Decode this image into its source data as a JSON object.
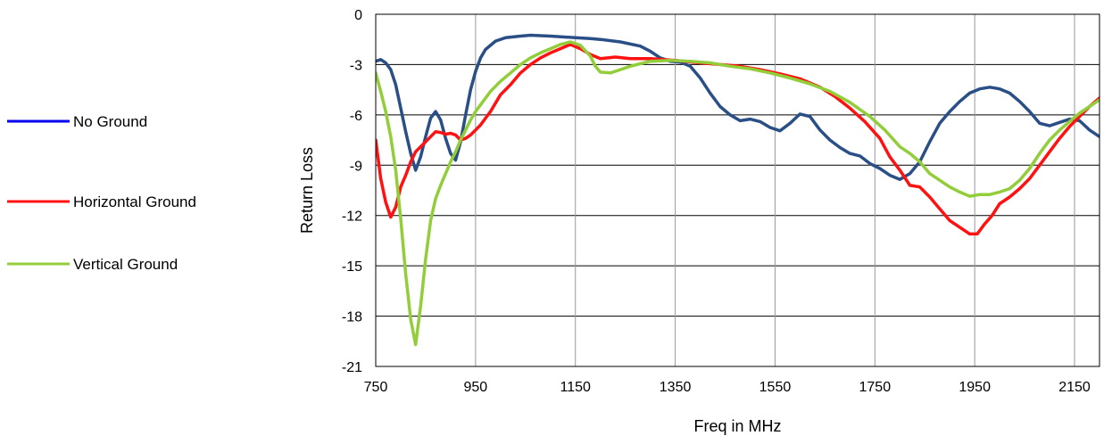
{
  "chart_data": {
    "type": "line",
    "title": "",
    "xlabel": "Freq in MHz",
    "ylabel": "Return Loss",
    "xlim": [
      750,
      2200
    ],
    "ylim": [
      -21,
      0
    ],
    "x_ticks": [
      750,
      950,
      1150,
      1350,
      1550,
      1750,
      1950,
      2150
    ],
    "y_ticks": [
      0,
      -3,
      -6,
      -9,
      -12,
      -15,
      -18,
      -21
    ],
    "grid": true,
    "legend_position": "left",
    "series": [
      {
        "name": "No Ground",
        "line_color": "#2a4f86",
        "legend_color": "#0000ee",
        "points": [
          [
            750,
            -2.8
          ],
          [
            760,
            -2.7
          ],
          [
            770,
            -2.9
          ],
          [
            780,
            -3.3
          ],
          [
            790,
            -4.2
          ],
          [
            800,
            -5.6
          ],
          [
            810,
            -7.0
          ],
          [
            820,
            -8.3
          ],
          [
            830,
            -9.3
          ],
          [
            840,
            -8.5
          ],
          [
            850,
            -7.3
          ],
          [
            860,
            -6.2
          ],
          [
            870,
            -5.8
          ],
          [
            880,
            -6.3
          ],
          [
            890,
            -7.4
          ],
          [
            900,
            -8.3
          ],
          [
            910,
            -8.7
          ],
          [
            920,
            -7.6
          ],
          [
            930,
            -6.0
          ],
          [
            940,
            -4.5
          ],
          [
            950,
            -3.4
          ],
          [
            960,
            -2.6
          ],
          [
            970,
            -2.1
          ],
          [
            990,
            -1.6
          ],
          [
            1010,
            -1.4
          ],
          [
            1040,
            -1.3
          ],
          [
            1060,
            -1.25
          ],
          [
            1100,
            -1.3
          ],
          [
            1150,
            -1.4
          ],
          [
            1180,
            -1.45
          ],
          [
            1200,
            -1.5
          ],
          [
            1240,
            -1.65
          ],
          [
            1280,
            -1.9
          ],
          [
            1300,
            -2.2
          ],
          [
            1320,
            -2.6
          ],
          [
            1340,
            -2.8
          ],
          [
            1360,
            -2.85
          ],
          [
            1380,
            -3.1
          ],
          [
            1400,
            -3.8
          ],
          [
            1420,
            -4.7
          ],
          [
            1440,
            -5.5
          ],
          [
            1460,
            -6.0
          ],
          [
            1480,
            -6.35
          ],
          [
            1500,
            -6.25
          ],
          [
            1520,
            -6.4
          ],
          [
            1540,
            -6.75
          ],
          [
            1560,
            -6.95
          ],
          [
            1580,
            -6.5
          ],
          [
            1600,
            -5.95
          ],
          [
            1620,
            -6.1
          ],
          [
            1640,
            -6.9
          ],
          [
            1660,
            -7.5
          ],
          [
            1680,
            -7.95
          ],
          [
            1700,
            -8.3
          ],
          [
            1720,
            -8.45
          ],
          [
            1740,
            -8.9
          ],
          [
            1760,
            -9.2
          ],
          [
            1780,
            -9.6
          ],
          [
            1800,
            -9.85
          ],
          [
            1820,
            -9.5
          ],
          [
            1840,
            -8.8
          ],
          [
            1860,
            -7.6
          ],
          [
            1880,
            -6.5
          ],
          [
            1900,
            -5.8
          ],
          [
            1920,
            -5.2
          ],
          [
            1940,
            -4.7
          ],
          [
            1960,
            -4.45
          ],
          [
            1980,
            -4.35
          ],
          [
            2000,
            -4.45
          ],
          [
            2020,
            -4.7
          ],
          [
            2040,
            -5.2
          ],
          [
            2060,
            -5.8
          ],
          [
            2080,
            -6.5
          ],
          [
            2100,
            -6.65
          ],
          [
            2120,
            -6.45
          ],
          [
            2140,
            -6.25
          ],
          [
            2160,
            -6.35
          ],
          [
            2180,
            -6.9
          ],
          [
            2200,
            -7.3
          ]
        ]
      },
      {
        "name": "Horizontal Ground",
        "line_color": "#ff1111",
        "legend_color": "#ff1111",
        "points": [
          [
            750,
            -7.5
          ],
          [
            760,
            -9.8
          ],
          [
            770,
            -11.2
          ],
          [
            780,
            -12.1
          ],
          [
            790,
            -11.5
          ],
          [
            800,
            -10.3
          ],
          [
            810,
            -9.6
          ],
          [
            820,
            -8.8
          ],
          [
            830,
            -8.2
          ],
          [
            840,
            -7.9
          ],
          [
            850,
            -7.6
          ],
          [
            860,
            -7.3
          ],
          [
            870,
            -7.0
          ],
          [
            880,
            -7.05
          ],
          [
            890,
            -7.15
          ],
          [
            900,
            -7.1
          ],
          [
            910,
            -7.2
          ],
          [
            920,
            -7.5
          ],
          [
            930,
            -7.4
          ],
          [
            940,
            -7.2
          ],
          [
            950,
            -6.9
          ],
          [
            960,
            -6.6
          ],
          [
            970,
            -6.2
          ],
          [
            980,
            -5.8
          ],
          [
            990,
            -5.3
          ],
          [
            1000,
            -4.8
          ],
          [
            1020,
            -4.2
          ],
          [
            1040,
            -3.5
          ],
          [
            1060,
            -3.0
          ],
          [
            1080,
            -2.6
          ],
          [
            1100,
            -2.3
          ],
          [
            1120,
            -2.05
          ],
          [
            1140,
            -1.8
          ],
          [
            1160,
            -2.05
          ],
          [
            1180,
            -2.4
          ],
          [
            1200,
            -2.65
          ],
          [
            1230,
            -2.55
          ],
          [
            1260,
            -2.65
          ],
          [
            1300,
            -2.65
          ],
          [
            1350,
            -2.75
          ],
          [
            1400,
            -2.9
          ],
          [
            1440,
            -3.0
          ],
          [
            1480,
            -3.1
          ],
          [
            1520,
            -3.3
          ],
          [
            1560,
            -3.55
          ],
          [
            1600,
            -3.85
          ],
          [
            1640,
            -4.35
          ],
          [
            1670,
            -4.9
          ],
          [
            1700,
            -5.6
          ],
          [
            1730,
            -6.4
          ],
          [
            1760,
            -7.4
          ],
          [
            1780,
            -8.5
          ],
          [
            1800,
            -9.3
          ],
          [
            1820,
            -10.2
          ],
          [
            1840,
            -10.3
          ],
          [
            1860,
            -10.9
          ],
          [
            1880,
            -11.6
          ],
          [
            1900,
            -12.3
          ],
          [
            1920,
            -12.7
          ],
          [
            1940,
            -13.1
          ],
          [
            1955,
            -13.1
          ],
          [
            1970,
            -12.5
          ],
          [
            1985,
            -12.0
          ],
          [
            2000,
            -11.3
          ],
          [
            2020,
            -10.9
          ],
          [
            2040,
            -10.4
          ],
          [
            2060,
            -9.8
          ],
          [
            2080,
            -9.0
          ],
          [
            2100,
            -8.2
          ],
          [
            2120,
            -7.4
          ],
          [
            2140,
            -6.7
          ],
          [
            2160,
            -6.1
          ],
          [
            2180,
            -5.5
          ],
          [
            2200,
            -5.0
          ]
        ]
      },
      {
        "name": "Vertical  Ground",
        "line_color": "#92cd3a",
        "legend_color": "#92cd3a",
        "points": [
          [
            750,
            -3.5
          ],
          [
            760,
            -4.6
          ],
          [
            770,
            -5.8
          ],
          [
            780,
            -7.3
          ],
          [
            790,
            -9.3
          ],
          [
            800,
            -12.2
          ],
          [
            810,
            -15.5
          ],
          [
            820,
            -18.2
          ],
          [
            830,
            -19.7
          ],
          [
            840,
            -17.4
          ],
          [
            850,
            -14.6
          ],
          [
            860,
            -12.3
          ],
          [
            870,
            -11.0
          ],
          [
            880,
            -10.2
          ],
          [
            890,
            -9.5
          ],
          [
            900,
            -8.8
          ],
          [
            910,
            -8.2
          ],
          [
            920,
            -7.5
          ],
          [
            930,
            -6.9
          ],
          [
            940,
            -6.3
          ],
          [
            950,
            -5.8
          ],
          [
            960,
            -5.4
          ],
          [
            980,
            -4.6
          ],
          [
            1000,
            -4.0
          ],
          [
            1020,
            -3.5
          ],
          [
            1040,
            -3.0
          ],
          [
            1060,
            -2.6
          ],
          [
            1080,
            -2.3
          ],
          [
            1100,
            -2.05
          ],
          [
            1120,
            -1.8
          ],
          [
            1140,
            -1.65
          ],
          [
            1160,
            -1.85
          ],
          [
            1180,
            -2.5
          ],
          [
            1190,
            -3.1
          ],
          [
            1200,
            -3.45
          ],
          [
            1220,
            -3.5
          ],
          [
            1240,
            -3.3
          ],
          [
            1260,
            -3.1
          ],
          [
            1280,
            -2.95
          ],
          [
            1300,
            -2.8
          ],
          [
            1340,
            -2.75
          ],
          [
            1380,
            -2.8
          ],
          [
            1420,
            -2.9
          ],
          [
            1460,
            -3.1
          ],
          [
            1500,
            -3.25
          ],
          [
            1540,
            -3.5
          ],
          [
            1580,
            -3.8
          ],
          [
            1620,
            -4.15
          ],
          [
            1660,
            -4.6
          ],
          [
            1700,
            -5.25
          ],
          [
            1740,
            -6.1
          ],
          [
            1770,
            -6.9
          ],
          [
            1800,
            -7.9
          ],
          [
            1820,
            -8.3
          ],
          [
            1840,
            -8.8
          ],
          [
            1860,
            -9.5
          ],
          [
            1880,
            -9.9
          ],
          [
            1900,
            -10.3
          ],
          [
            1920,
            -10.6
          ],
          [
            1940,
            -10.85
          ],
          [
            1960,
            -10.75
          ],
          [
            1980,
            -10.75
          ],
          [
            2000,
            -10.6
          ],
          [
            2020,
            -10.4
          ],
          [
            2040,
            -9.9
          ],
          [
            2060,
            -9.2
          ],
          [
            2080,
            -8.3
          ],
          [
            2100,
            -7.5
          ],
          [
            2120,
            -6.9
          ],
          [
            2140,
            -6.4
          ],
          [
            2160,
            -5.9
          ],
          [
            2180,
            -5.5
          ],
          [
            2200,
            -5.1
          ]
        ]
      }
    ]
  }
}
